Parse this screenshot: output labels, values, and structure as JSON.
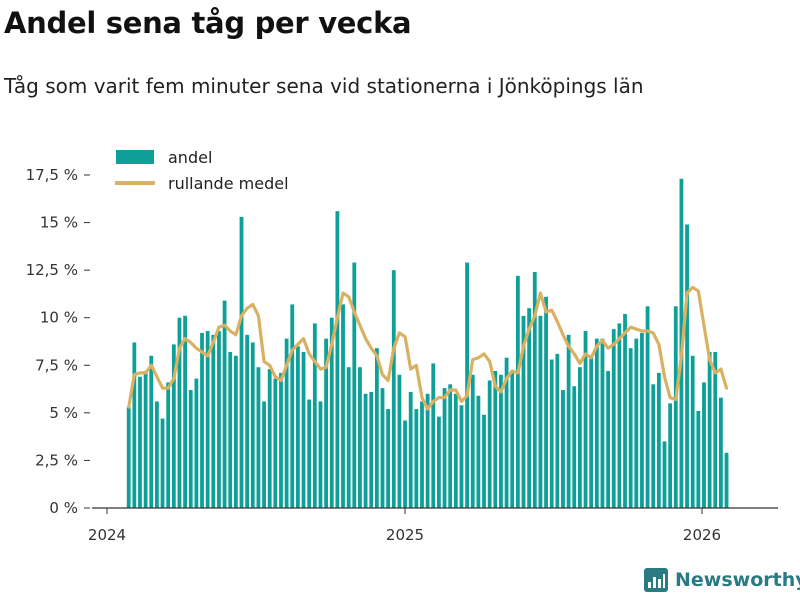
{
  "header": {
    "title": "Andel sena tåg per vecka",
    "subtitle": "Tåg som varit fem minuter sena vid stationerna i Jönköpings län"
  },
  "brand": {
    "name": "Newsworthy"
  },
  "colors": {
    "bar": "#0ea098",
    "line": "#d9b162",
    "axis": "#333333",
    "brand": "#2a7a83"
  },
  "chart_data": {
    "type": "bar",
    "title": "Andel sena tåg per vecka",
    "xlabel": "",
    "ylabel": "",
    "ylim": [
      0,
      0.185
    ],
    "yticks": [
      0,
      0.025,
      0.05,
      0.075,
      0.1,
      0.125,
      0.15,
      0.175
    ],
    "yticklabels": [
      "0 %",
      "2,5 %",
      "5 %",
      "7,5 %",
      "10 %",
      "12,5 %",
      "15 %",
      "17,5 %"
    ],
    "xticks": [
      "2024",
      "2025",
      "2026"
    ],
    "legend": {
      "position": "top-left"
    },
    "series": [
      {
        "name": "andel",
        "kind": "bar",
        "values": [
          0.053,
          0.087,
          0.069,
          0.072,
          0.08,
          0.056,
          0.047,
          0.066,
          0.086,
          0.1,
          0.101,
          0.062,
          0.068,
          0.092,
          0.093,
          0.091,
          0.093,
          0.109,
          0.082,
          0.08,
          0.153,
          0.091,
          0.087,
          0.074,
          0.056,
          0.073,
          0.068,
          0.071,
          0.089,
          0.107,
          0.085,
          0.082,
          0.057,
          0.097,
          0.056,
          0.089,
          0.1,
          0.156,
          0.107,
          0.074,
          0.129,
          0.074,
          0.06,
          0.061,
          0.084,
          0.063,
          0.052,
          0.125,
          0.07,
          0.046,
          0.061,
          0.052,
          0.056,
          0.06,
          0.076,
          0.048,
          0.063,
          0.065,
          0.06,
          0.054,
          0.129,
          0.07,
          0.059,
          0.049,
          0.067,
          0.072,
          0.07,
          0.079,
          0.071,
          0.122,
          0.101,
          0.105,
          0.124,
          0.101,
          0.111,
          0.078,
          0.081,
          0.062,
          0.091,
          0.064,
          0.074,
          0.093,
          0.08,
          0.089,
          0.089,
          0.072,
          0.094,
          0.097,
          0.102,
          0.084,
          0.089,
          0.092,
          0.106,
          0.065,
          0.071,
          0.035,
          0.055,
          0.106,
          0.173,
          0.149,
          0.08,
          0.051,
          0.066,
          0.082,
          0.082,
          0.058,
          0.029
        ]
      },
      {
        "name": "rullande medel",
        "kind": "line",
        "values": [
          0.053,
          0.07,
          0.071,
          0.071,
          0.075,
          0.069,
          0.063,
          0.063,
          0.068,
          0.084,
          0.089,
          0.087,
          0.084,
          0.082,
          0.08,
          0.087,
          0.095,
          0.096,
          0.093,
          0.091,
          0.101,
          0.105,
          0.107,
          0.101,
          0.077,
          0.075,
          0.069,
          0.067,
          0.075,
          0.083,
          0.086,
          0.089,
          0.081,
          0.077,
          0.073,
          0.074,
          0.086,
          0.1,
          0.113,
          0.111,
          0.103,
          0.096,
          0.089,
          0.084,
          0.08,
          0.07,
          0.067,
          0.084,
          0.092,
          0.09,
          0.073,
          0.075,
          0.058,
          0.052,
          0.056,
          0.058,
          0.058,
          0.062,
          0.062,
          0.056,
          0.059,
          0.078,
          0.079,
          0.081,
          0.077,
          0.064,
          0.061,
          0.068,
          0.072,
          0.071,
          0.085,
          0.094,
          0.101,
          0.113,
          0.103,
          0.104,
          0.098,
          0.091,
          0.085,
          0.081,
          0.076,
          0.081,
          0.079,
          0.085,
          0.088,
          0.084,
          0.086,
          0.089,
          0.092,
          0.095,
          0.094,
          0.093,
          0.093,
          0.092,
          0.086,
          0.069,
          0.058,
          0.057,
          0.08,
          0.113,
          0.116,
          0.114,
          0.096,
          0.078,
          0.071,
          0.073,
          0.063
        ]
      }
    ]
  }
}
